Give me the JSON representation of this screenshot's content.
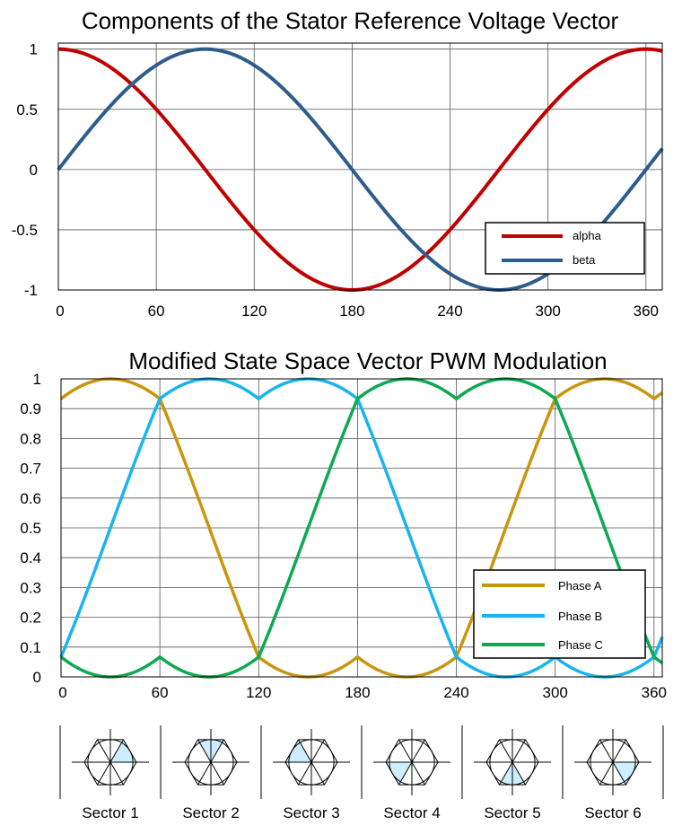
{
  "chart_data": [
    {
      "type": "line",
      "title": "Components of the Stator Reference Voltage Vector",
      "xlabel": "",
      "ylabel": "",
      "xlim": [
        0,
        370
      ],
      "ylim": [
        -1,
        1.05
      ],
      "x_ticks": [
        0,
        60,
        120,
        180,
        240,
        300,
        360
      ],
      "x_tick_labels": [
        "0",
        "60",
        "120",
        "180",
        "240",
        "300",
        "360"
      ],
      "y_ticks": [
        1,
        0.5,
        0,
        -0.5,
        -1
      ],
      "y_tick_labels": [
        "1",
        "0.5",
        "0",
        "-0.5",
        "-1"
      ],
      "x": [
        0,
        30,
        45,
        60,
        90,
        120,
        150,
        180,
        210,
        240,
        270,
        300,
        330,
        360,
        370
      ],
      "series": [
        {
          "name": "alpha",
          "color": "#c00000",
          "function": "cos",
          "values": [
            1.0,
            0.866,
            0.707,
            0.5,
            0.0,
            -0.5,
            -0.866,
            -1.0,
            -0.866,
            -0.5,
            0.0,
            0.5,
            0.866,
            1.0,
            0.985
          ]
        },
        {
          "name": "beta",
          "color": "#2e5d8c",
          "function": "sin",
          "values": [
            0.0,
            0.5,
            0.707,
            0.866,
            1.0,
            0.866,
            0.5,
            0.0,
            -0.5,
            -0.866,
            -1.0,
            -0.866,
            -0.5,
            0.0,
            0.174
          ]
        }
      ],
      "legend": {
        "position": "bottom-right",
        "entries": [
          "alpha",
          "beta"
        ]
      },
      "grid": true
    },
    {
      "type": "line",
      "title": "Modified State Space Vector PWM Modulation",
      "xlabel": "",
      "ylabel": "",
      "xlim": [
        0,
        365
      ],
      "ylim": [
        0,
        1
      ],
      "x_ticks": [
        0,
        60,
        120,
        180,
        240,
        300,
        360
      ],
      "x_tick_labels": [
        "0",
        "60",
        "120",
        "180",
        "240",
        "300",
        "360"
      ],
      "y_ticks": [
        1,
        0.9,
        0.8,
        0.7,
        0.6,
        0.5,
        0.4,
        0.3,
        0.2,
        0.1,
        0
      ],
      "y_tick_labels": [
        "1",
        "0.9",
        "0.8",
        "0.7",
        "0.6",
        "0.5",
        "0.4",
        "0.3",
        "0.2",
        "0.1",
        "0"
      ],
      "x": [
        0,
        30,
        60,
        90,
        120,
        150,
        180,
        210,
        240,
        270,
        300,
        330,
        360,
        365
      ],
      "series": [
        {
          "name": "Phase A",
          "color": "#c8960c",
          "phase_shift_deg": 0,
          "values": [
            0.933,
            1.0,
            0.933,
            0.5,
            0.067,
            0.0,
            0.067,
            0.0,
            0.067,
            0.5,
            0.933,
            1.0,
            0.933,
            0.95
          ]
        },
        {
          "name": "Phase B",
          "color": "#19b4f0",
          "phase_shift_deg": -120,
          "values": [
            0.067,
            0.5,
            0.933,
            1.0,
            0.933,
            1.0,
            0.933,
            0.5,
            0.067,
            0.0,
            0.067,
            0.0,
            0.067,
            0.11
          ]
        },
        {
          "name": "Phase C",
          "color": "#0caa50",
          "phase_shift_deg": 120,
          "values": [
            0.067,
            0.0,
            0.067,
            0.0,
            0.067,
            0.5,
            0.933,
            1.0,
            0.933,
            1.0,
            0.933,
            0.5,
            0.067,
            0.0
          ]
        }
      ],
      "legend": {
        "position": "bottom-right",
        "entries": [
          "Phase A",
          "Phase B",
          "Phase C"
        ]
      },
      "grid": true
    }
  ],
  "sectors": {
    "labels": [
      "Sector 1",
      "Sector 2",
      "Sector 3",
      "Sector 4",
      "Sector 5",
      "Sector 6"
    ],
    "highlighted_angle_start_deg": [
      0,
      60,
      120,
      180,
      240,
      300
    ],
    "highlight_color": "#cceeff"
  }
}
